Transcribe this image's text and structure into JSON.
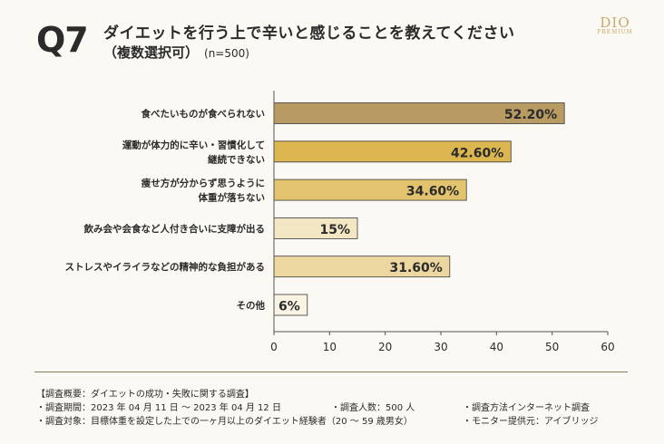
{
  "header": {
    "q_label": "Q7",
    "title_line1": "ダイエットを行う上で辛いと感じることを教えてください",
    "title_line2": "（複数選択可）",
    "sample": "(n=500)"
  },
  "logo": {
    "main": "DIO",
    "sub": "PREMIUM"
  },
  "chart_data": {
    "type": "bar",
    "orientation": "horizontal",
    "categories": [
      [
        "食べたいものが食べられない"
      ],
      [
        "運動が体力的に辛い・習慣化して",
        "継続できない"
      ],
      [
        "痩せ方が分からず思うように",
        "体重が落ちない"
      ],
      [
        "飲み会や会食など人付き合いに支障が出る"
      ],
      [
        "ストレスやイライラなどの精神的な負担がある"
      ],
      [
        "その他"
      ]
    ],
    "values": [
      52.2,
      42.6,
      34.6,
      15,
      31.6,
      6
    ],
    "value_labels": [
      "52.20%",
      "42.60%",
      "34.60%",
      "15%",
      "31.60%",
      "6%"
    ],
    "bar_colors": [
      "#b89a63",
      "#dcb74f",
      "#e3c46e",
      "#f3e7c3",
      "#ecd7a0",
      "#faf3e3"
    ],
    "xlim": [
      0,
      60
    ],
    "xticks": [
      "0",
      "10",
      "20",
      "30",
      "40",
      "50",
      "60"
    ],
    "grid": false,
    "title": "",
    "xlabel": "",
    "ylabel": ""
  },
  "footer": {
    "heading": "【調査概要：ダイエットの成功・失敗に関する調査】",
    "period": "・調査期間：2023 年 04 月 11 日 〜 2023 年 04 月 12 日",
    "count": "・調査人数：500 人",
    "method": "・調査方法インターネット調査",
    "target": "・調査対象：目標体重を設定した上での一ヶ月以上のダイエット経験者（20 〜 59 歳男女）",
    "provider": "・モニター提供元：アイブリッジ"
  }
}
